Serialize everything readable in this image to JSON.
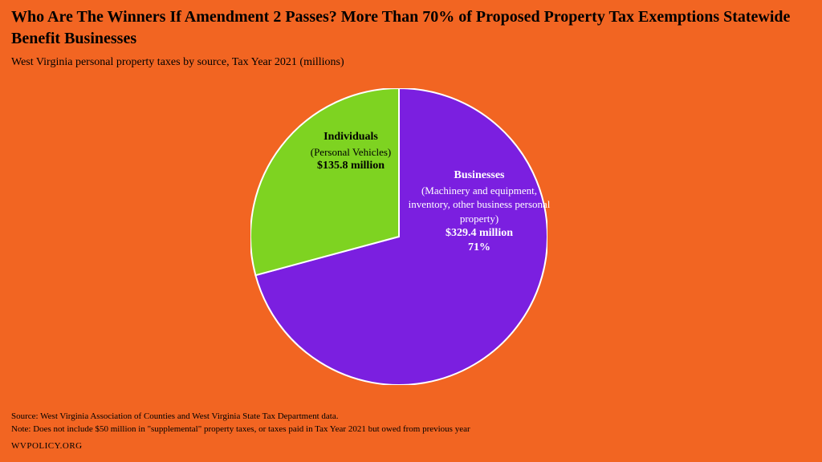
{
  "title": "Who Are The Winners If Amendment 2 Passes? More Than 70% of Proposed Property Tax Exemptions Statewide Benefit Businesses",
  "subtitle": "West Virginia personal property taxes by source, Tax Year 2021 (millions)",
  "chart": {
    "type": "pie",
    "background_color": "#f26522",
    "stroke_color": "#ffffff",
    "stroke_width": 2,
    "radius": 185,
    "slices": [
      {
        "key": "businesses",
        "name": "Businesses",
        "desc": "(Machinery and equipment, inventory, other business personal property)",
        "amount_label": "$329.4 million",
        "percent_label": "71%",
        "value": 329.4,
        "percent": 70.8,
        "color": "#7b1fe0",
        "label_color": "#ffffff"
      },
      {
        "key": "individuals",
        "name": "Individuals",
        "desc": "(Personal Vehicles)",
        "amount_label": "$135.8 million",
        "percent_label": "",
        "value": 135.8,
        "percent": 29.2,
        "color": "#7ed321",
        "label_color": "#000000"
      }
    ]
  },
  "footer": {
    "source": "Source: West Virginia Association of Counties and West Virginia State Tax Department data.",
    "note": "Note: Does not include $50 million in \"supplemental\" property taxes, or taxes paid in Tax Year 2021 but owed from previous year",
    "org": "WVPOLICY.ORG"
  }
}
